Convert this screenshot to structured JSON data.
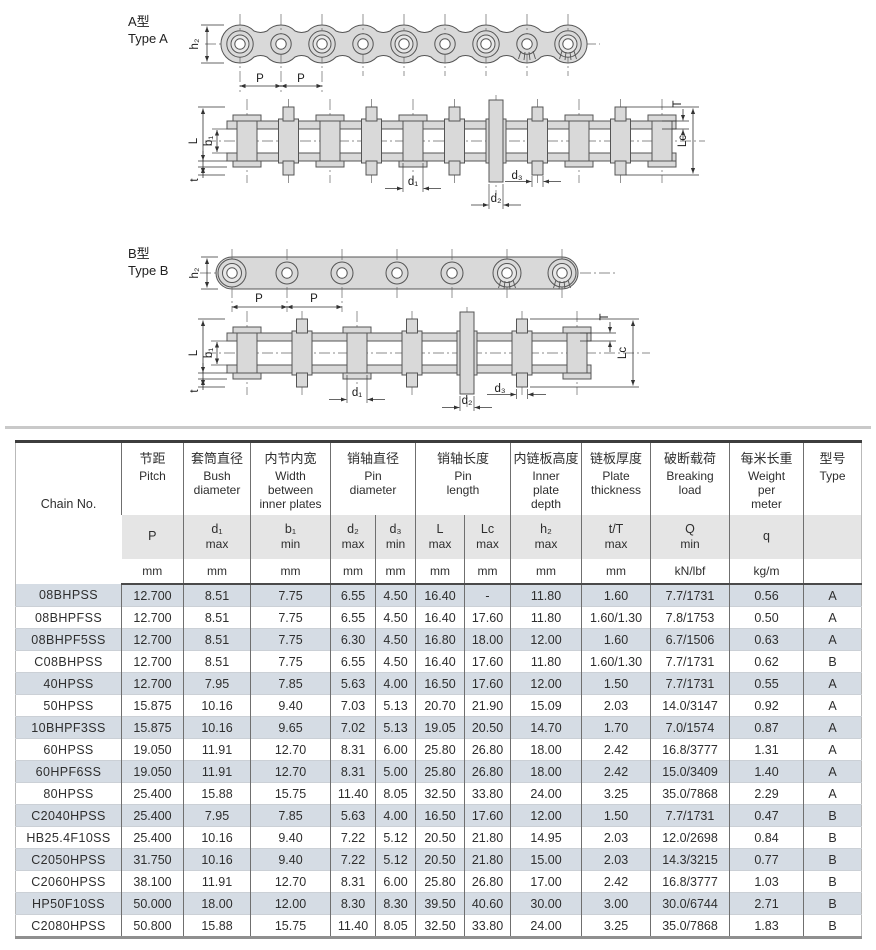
{
  "drawings": {
    "type_a": {
      "title_cn": "A型",
      "title_en": "Type A",
      "dims": {
        "h2": "h₂",
        "p": "P",
        "L": "L",
        "b1": "b₁",
        "t": "t",
        "T": "T",
        "Lc": "Lc",
        "d1": "d₁",
        "d2": "d₂",
        "d3": "d₃"
      }
    },
    "type_b": {
      "title_cn": "B型",
      "title_en": "Type B",
      "dims": {
        "h2": "h₂",
        "p": "P",
        "L": "L",
        "b1": "b₁",
        "t": "t",
        "T": "T",
        "Lc": "Lc",
        "d1": "d₁",
        "d2": "d₂",
        "d3": "d₃"
      }
    }
  },
  "table": {
    "chain_no": "Chain No.",
    "cols": {
      "pitch": {
        "cn": "节距",
        "en": "Pitch",
        "sym": "P",
        "sub": "",
        "unit": "mm"
      },
      "bush": {
        "cn": "套筒直径",
        "en": "Bush diameter",
        "sym": "d₁",
        "sub": "max",
        "unit": "mm"
      },
      "width": {
        "cn": "内节内宽",
        "en": "Width between inner plates",
        "sym": "b₁",
        "sub": "min",
        "unit": "mm"
      },
      "pin_dia": {
        "cn": "销轴直径",
        "en": "Pin diameter",
        "d2": {
          "sym": "d₂",
          "sub": "max",
          "unit": "mm"
        },
        "d3": {
          "sym": "d₃",
          "sub": "min",
          "unit": "mm"
        }
      },
      "pin_len": {
        "cn": "销轴长度",
        "en": "Pin length",
        "L": {
          "sym": "L",
          "sub": "max",
          "unit": "mm"
        },
        "Lc": {
          "sym": "Lc",
          "sub": "max",
          "unit": "mm"
        }
      },
      "depth": {
        "cn": "内链板高度",
        "en": "Inner plate depth",
        "sym": "h₂",
        "sub": "max",
        "unit": "mm"
      },
      "thick": {
        "cn": "链板厚度",
        "en": "Plate thickness",
        "sym": "t/T",
        "sub": "max",
        "unit": "mm"
      },
      "load": {
        "cn": "破断载荷",
        "en": "Breaking load",
        "sym": "Q",
        "sub": "min",
        "unit": "kN/lbf"
      },
      "weight": {
        "cn": "每米长重",
        "en": "Weight per meter",
        "sym": "q",
        "sub": "",
        "unit": "kg/m"
      },
      "type": {
        "cn": "型号",
        "en": "Type"
      }
    },
    "rows": [
      [
        "08BHPSS",
        "12.700",
        "8.51",
        "7.75",
        "6.55",
        "4.50",
        "16.40",
        "-",
        "11.80",
        "1.60",
        "7.7/1731",
        "0.56",
        "A"
      ],
      [
        "08BHPFSS",
        "12.700",
        "8.51",
        "7.75",
        "6.55",
        "4.50",
        "16.40",
        "17.60",
        "11.80",
        "1.60/1.30",
        "7.8/1753",
        "0.50",
        "A"
      ],
      [
        "08BHPF5SS",
        "12.700",
        "8.51",
        "7.75",
        "6.30",
        "4.50",
        "16.80",
        "18.00",
        "12.00",
        "1.60",
        "6.7/1506",
        "0.63",
        "A"
      ],
      [
        "C08BHPSS",
        "12.700",
        "8.51",
        "7.75",
        "6.55",
        "4.50",
        "16.40",
        "17.60",
        "11.80",
        "1.60/1.30",
        "7.7/1731",
        "0.62",
        "B"
      ],
      [
        "40HPSS",
        "12.700",
        "7.95",
        "7.85",
        "5.63",
        "4.00",
        "16.50",
        "17.60",
        "12.00",
        "1.50",
        "7.7/1731",
        "0.55",
        "A"
      ],
      [
        "50HPSS",
        "15.875",
        "10.16",
        "9.40",
        "7.03",
        "5.13",
        "20.70",
        "21.90",
        "15.09",
        "2.03",
        "14.0/3147",
        "0.92",
        "A"
      ],
      [
        "10BHPF3SS",
        "15.875",
        "10.16",
        "9.65",
        "7.02",
        "5.13",
        "19.05",
        "20.50",
        "14.70",
        "1.70",
        "7.0/1574",
        "0.87",
        "A"
      ],
      [
        "60HPSS",
        "19.050",
        "11.91",
        "12.70",
        "8.31",
        "6.00",
        "25.80",
        "26.80",
        "18.00",
        "2.42",
        "16.8/3777",
        "1.31",
        "A"
      ],
      [
        "60HPF6SS",
        "19.050",
        "11.91",
        "12.70",
        "8.31",
        "5.00",
        "25.80",
        "26.80",
        "18.00",
        "2.42",
        "15.0/3409",
        "1.40",
        "A"
      ],
      [
        "80HPSS",
        "25.400",
        "15.88",
        "15.75",
        "11.40",
        "8.05",
        "32.50",
        "33.80",
        "24.00",
        "3.25",
        "35.0/7868",
        "2.29",
        "A"
      ],
      [
        "C2040HPSS",
        "25.400",
        "7.95",
        "7.85",
        "5.63",
        "4.00",
        "16.50",
        "17.60",
        "12.00",
        "1.50",
        "7.7/1731",
        "0.47",
        "B"
      ],
      [
        "HB25.4F10SS",
        "25.400",
        "10.16",
        "9.40",
        "7.22",
        "5.12",
        "20.50",
        "21.80",
        "14.95",
        "2.03",
        "12.0/2698",
        "0.84",
        "B"
      ],
      [
        "C2050HPSS",
        "31.750",
        "10.16",
        "9.40",
        "7.22",
        "5.12",
        "20.50",
        "21.80",
        "15.00",
        "2.03",
        "14.3/3215",
        "0.77",
        "B"
      ],
      [
        "C2060HPSS",
        "38.100",
        "11.91",
        "12.70",
        "8.31",
        "6.00",
        "25.80",
        "26.80",
        "17.00",
        "2.42",
        "16.8/3777",
        "1.03",
        "B"
      ],
      [
        "HP50F10SS",
        "50.000",
        "18.00",
        "12.00",
        "8.30",
        "8.30",
        "39.50",
        "40.60",
        "30.00",
        "3.00",
        "30.0/6744",
        "2.71",
        "B"
      ],
      [
        "C2080HPSS",
        "50.800",
        "15.88",
        "15.75",
        "11.40",
        "8.05",
        "32.50",
        "33.80",
        "24.00",
        "3.25",
        "35.0/7868",
        "1.83",
        "B"
      ]
    ]
  },
  "colors": {
    "row_shade": "#d5dce4",
    "header_band": "#e5e5e5",
    "drawing_fill": "#d9d9d9",
    "table_top_border": "#3d3d3d"
  }
}
